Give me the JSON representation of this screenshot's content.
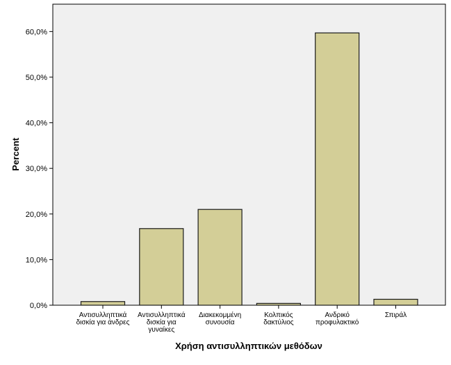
{
  "chart_data": {
    "type": "bar",
    "title": "",
    "xlabel": "Χρήση αντισυλληπτικών μεθόδων",
    "ylabel": "Percent",
    "ylim": [
      0,
      66
    ],
    "yticks": [
      0,
      10,
      20,
      30,
      40,
      50,
      60
    ],
    "ytick_labels": [
      "0,0%",
      "10,0%",
      "20,0%",
      "30,0%",
      "40,0%",
      "50,0%",
      "60,0%"
    ],
    "grid": false,
    "categories": [
      [
        "Αντισυλληπτικά",
        "δισκία για άνδρες"
      ],
      [
        "Αντισυλληπτικά",
        "δισκία για",
        "γυναίκες"
      ],
      [
        "Διακεκομμένη",
        "συνουσία"
      ],
      [
        "Κολπικός",
        "δακτύλιος"
      ],
      [
        "Ανδρικό",
        "προφυλακτικό"
      ],
      [
        "Σπιράλ"
      ]
    ],
    "values": [
      0.8,
      16.8,
      21.0,
      0.4,
      59.7,
      1.3
    ],
    "colors": {
      "bar_fill": "#d3ce97",
      "bar_stroke": "#1a1a1a",
      "plot_background": "#f0f0f0",
      "axis": "#000000"
    }
  }
}
